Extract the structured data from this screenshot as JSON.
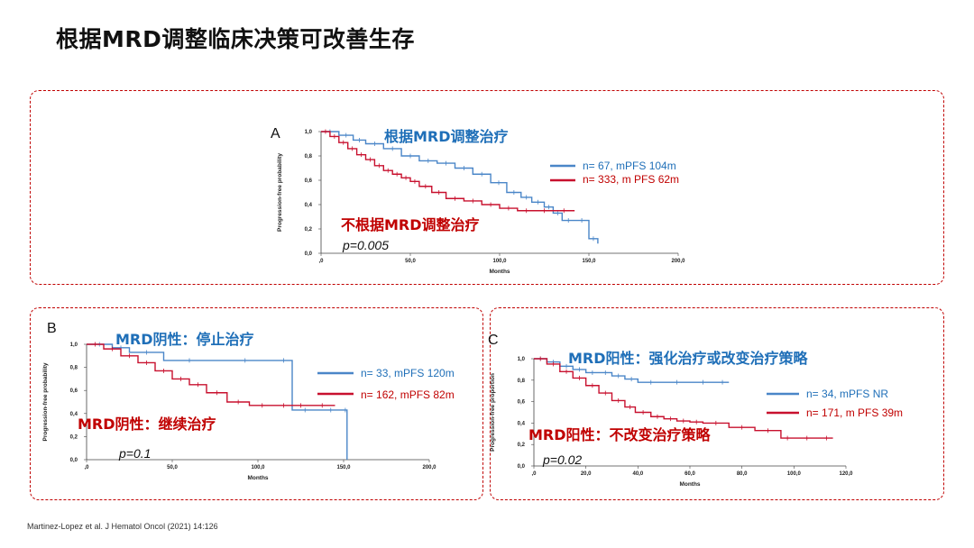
{
  "title": "根据MRD调整临床决策可改善生存",
  "citation": "Martinez-Lopez et al. J Hematol Oncol (2021) 14:126",
  "colors": {
    "blue": "#4a86c8",
    "red": "#c8102e",
    "blue_text": "#1f6fb8",
    "red_text": "#c00000",
    "frame": "#c00000"
  },
  "panels": [
    {
      "letter": "A",
      "annotation_blue": "根据MRD调整治疗",
      "annotation_red": "不根据MRD调整治疗",
      "legend": [
        "n= 67, mPFS 104m",
        "n= 333, m PFS 62m"
      ],
      "p": "p=0.005"
    },
    {
      "letter": "B",
      "annotation_blue": "MRD阴性：停止治疗",
      "annotation_red": "MRD阴性：继续治疗",
      "legend": [
        "n= 33, mPFS 120m",
        "n= 162, mPFS 82m"
      ],
      "p": "p=0.1"
    },
    {
      "letter": "C",
      "annotation_blue": "MRD阳性：强化治疗或改变治疗策略",
      "annotation_red": "MRD阳性：不改变治疗策略",
      "legend": [
        "n= 34, mPFS NR",
        "n= 171, m PFS 39m"
      ],
      "p": "p=0.02"
    }
  ],
  "chart_data": [
    {
      "type": "line",
      "panel": "A",
      "title": "",
      "xlabel": "Months",
      "ylabel": "Progression-free probability",
      "xlim": [
        0,
        200
      ],
      "ylim": [
        0,
        1
      ],
      "xticks": [
        ",0",
        "50,0",
        "100,0",
        "150,0",
        "200,0"
      ],
      "yticks": [
        "0,0",
        "0,2",
        "0,4",
        "0,6",
        "0,8",
        "1,0"
      ],
      "series": [
        {
          "name": "n= 67, mPFS 104m",
          "color": "#4a86c8",
          "x": [
            0,
            10,
            18,
            25,
            35,
            45,
            55,
            65,
            75,
            85,
            95,
            104,
            112,
            118,
            125,
            130,
            135,
            142,
            150,
            155
          ],
          "y": [
            1.0,
            0.97,
            0.93,
            0.9,
            0.86,
            0.8,
            0.76,
            0.74,
            0.7,
            0.65,
            0.58,
            0.5,
            0.46,
            0.42,
            0.38,
            0.33,
            0.27,
            0.27,
            0.12,
            0.08
          ]
        },
        {
          "name": "n= 333, m PFS 62m",
          "color": "#c8102e",
          "x": [
            0,
            5,
            10,
            15,
            20,
            25,
            30,
            35,
            40,
            45,
            50,
            55,
            62,
            70,
            80,
            90,
            100,
            110,
            120,
            130,
            142
          ],
          "y": [
            1.0,
            0.96,
            0.91,
            0.86,
            0.81,
            0.77,
            0.72,
            0.68,
            0.65,
            0.62,
            0.59,
            0.55,
            0.5,
            0.45,
            0.43,
            0.4,
            0.37,
            0.35,
            0.35,
            0.35,
            0.35
          ]
        }
      ]
    },
    {
      "type": "line",
      "panel": "B",
      "title": "",
      "xlabel": "Months",
      "ylabel": "Progression-free probability",
      "xlim": [
        0,
        200
      ],
      "ylim": [
        0,
        1
      ],
      "xticks": [
        ",0",
        "50,0",
        "100,0",
        "150,0",
        "200,0"
      ],
      "yticks": [
        "0,0",
        "0,2",
        "0,4",
        "0,6",
        "0,8",
        "1,0"
      ],
      "series": [
        {
          "name": "n= 33, mPFS 120m",
          "color": "#4a86c8",
          "x": [
            0,
            15,
            25,
            45,
            75,
            110,
            120,
            135,
            150,
            152
          ],
          "y": [
            1.0,
            0.97,
            0.93,
            0.86,
            0.86,
            0.86,
            0.43,
            0.43,
            0.43,
            0.0
          ]
        },
        {
          "name": "n= 162, mPFS 82m",
          "color": "#c8102e",
          "x": [
            0,
            10,
            20,
            30,
            40,
            50,
            60,
            70,
            82,
            95,
            110,
            120,
            130,
            145
          ],
          "y": [
            1.0,
            0.96,
            0.9,
            0.84,
            0.77,
            0.7,
            0.65,
            0.58,
            0.5,
            0.47,
            0.47,
            0.47,
            0.47,
            0.47
          ]
        }
      ]
    },
    {
      "type": "line",
      "panel": "C",
      "title": "",
      "xlabel": "Months",
      "ylabel": "Progression-free proportion",
      "xlim": [
        0,
        120
      ],
      "ylim": [
        0,
        1
      ],
      "xticks": [
        ",0",
        "20,0",
        "40,0",
        "60,0",
        "80,0",
        "100,0",
        "120,0"
      ],
      "yticks": [
        "0,0",
        "0,2",
        "0,4",
        "0,6",
        "0,8",
        "1,0"
      ],
      "series": [
        {
          "name": "n= 34, mPFS NR",
          "color": "#4a86c8",
          "x": [
            0,
            5,
            10,
            15,
            20,
            25,
            30,
            35,
            40,
            50,
            60,
            70,
            75
          ],
          "y": [
            1.0,
            0.97,
            0.93,
            0.9,
            0.87,
            0.87,
            0.84,
            0.81,
            0.78,
            0.78,
            0.78,
            0.78,
            0.78
          ]
        },
        {
          "name": "n= 171, m PFS 39m",
          "color": "#c8102e",
          "x": [
            0,
            5,
            10,
            15,
            20,
            25,
            30,
            35,
            39,
            45,
            50,
            55,
            60,
            65,
            75,
            85,
            95,
            100,
            110,
            115
          ],
          "y": [
            1.0,
            0.95,
            0.88,
            0.82,
            0.75,
            0.68,
            0.61,
            0.55,
            0.5,
            0.46,
            0.44,
            0.42,
            0.41,
            0.4,
            0.36,
            0.33,
            0.26,
            0.26,
            0.26,
            0.26
          ]
        }
      ]
    }
  ]
}
